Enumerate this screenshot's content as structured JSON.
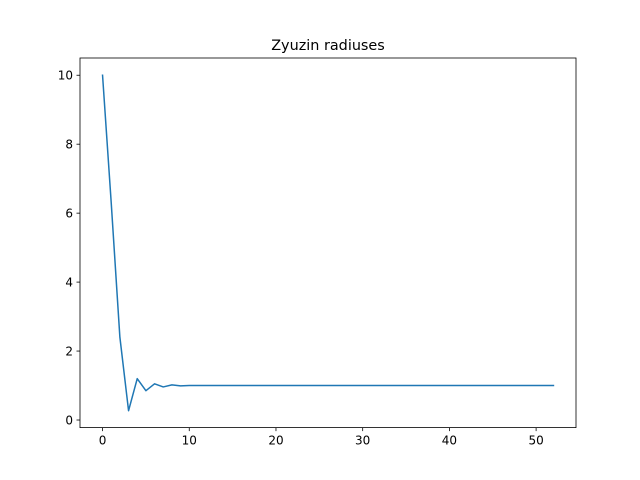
{
  "chart_data": {
    "type": "line",
    "title": "Zyuzin radiuses",
    "xlabel": "",
    "ylabel": "",
    "xlim": [
      -2.6,
      54.6
    ],
    "ylim": [
      -0.22,
      10.5
    ],
    "xticks": [
      0,
      10,
      20,
      30,
      40,
      50
    ],
    "yticks": [
      0,
      2,
      4,
      6,
      8,
      10
    ],
    "grid": false,
    "series": [
      {
        "color": "#1f77b4",
        "x": [
          0,
          1,
          2,
          3,
          4,
          5,
          6,
          7,
          8,
          9,
          10,
          11,
          12,
          13,
          14,
          15,
          16,
          17,
          18,
          19,
          20,
          21,
          22,
          23,
          24,
          25,
          26,
          27,
          28,
          29,
          30,
          31,
          32,
          33,
          34,
          35,
          36,
          37,
          38,
          39,
          40,
          41,
          42,
          43,
          44,
          45,
          46,
          47,
          48,
          49,
          50,
          51,
          52
        ],
        "y": [
          10,
          6.3,
          2.4,
          0.27,
          1.2,
          0.85,
          1.05,
          0.96,
          1.02,
          0.99,
          1.0,
          1.0,
          1.0,
          1.0,
          1.0,
          1.0,
          1.0,
          1.0,
          1.0,
          1.0,
          1.0,
          1.0,
          1.0,
          1.0,
          1.0,
          1.0,
          1.0,
          1.0,
          1.0,
          1.0,
          1.0,
          1.0,
          1.0,
          1.0,
          1.0,
          1.0,
          1.0,
          1.0,
          1.0,
          1.0,
          1.0,
          1.0,
          1.0,
          1.0,
          1.0,
          1.0,
          1.0,
          1.0,
          1.0,
          1.0,
          1.0,
          1.0,
          1.0
        ]
      }
    ]
  }
}
